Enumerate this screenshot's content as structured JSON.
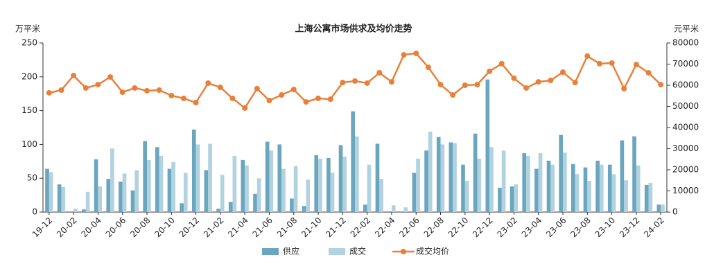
{
  "chart_data": {
    "type": "bar_line",
    "title": "上海公寓市场供求及均价走势",
    "ylabel": "万平米",
    "y2label": "元平米",
    "categories": [
      "19-12",
      null,
      "20-02",
      null,
      "20-04",
      null,
      "20-06",
      null,
      "20-08",
      null,
      "20-10",
      null,
      "20-12",
      null,
      "21-02",
      null,
      "21-04",
      null,
      "21-06",
      null,
      "21-08",
      null,
      "21-10",
      null,
      "21-12",
      null,
      "22-02",
      null,
      "22-04",
      null,
      "22-06",
      null,
      "22-08",
      null,
      "22-10",
      null,
      "22-12",
      null,
      "23-02",
      null,
      "23-04",
      null,
      "23-06",
      null,
      "23-08",
      null,
      "23-10",
      null,
      "23-12",
      null,
      "24-02"
    ],
    "series": [
      {
        "name": "供应",
        "color": "#6aa6be",
        "kind": "bar",
        "values": [
          64,
          41,
          0,
          4,
          78,
          49,
          45,
          32,
          105,
          96,
          64,
          13,
          122,
          62,
          5,
          15,
          77,
          27,
          104,
          100,
          20,
          9,
          84,
          80,
          99,
          149,
          11,
          101,
          0,
          0,
          58,
          91,
          111,
          103,
          70,
          116,
          196,
          36,
          38,
          87,
          64,
          76,
          114,
          71,
          66,
          76,
          70,
          106,
          112,
          40,
          11
        ]
      },
      {
        "name": "成交",
        "color": "#b1d2df",
        "kind": "bar",
        "values": [
          59,
          37,
          5,
          30,
          38,
          94,
          57,
          62,
          77,
          83,
          74,
          58,
          100,
          101,
          55,
          83,
          69,
          50,
          91,
          64,
          68,
          48,
          79,
          58,
          82,
          112,
          70,
          49,
          10,
          7,
          79,
          119,
          100,
          102,
          46,
          79,
          96,
          91,
          41,
          83,
          87,
          70,
          88,
          56,
          46,
          70,
          56,
          47,
          69,
          43,
          11
        ]
      },
      {
        "name": "成交均价",
        "color": "#e8803a",
        "kind": "line",
        "axis": "y2",
        "values": [
          56400,
          57700,
          64600,
          58700,
          60300,
          63900,
          56700,
          58700,
          57400,
          57700,
          55100,
          53800,
          51800,
          61000,
          59000,
          53800,
          49200,
          58400,
          52800,
          55400,
          58000,
          52100,
          53800,
          53400,
          61300,
          62000,
          61000,
          65900,
          61600,
          74400,
          75100,
          68500,
          60300,
          55400,
          60000,
          60300,
          66600,
          70200,
          63300,
          58700,
          61600,
          62300,
          66200,
          61300,
          73800,
          70200,
          70500,
          58400,
          69800,
          65900,
          60300
        ]
      }
    ],
    "ylim": [
      0,
      250
    ],
    "yticks": [
      0,
      50,
      100,
      150,
      200,
      250
    ],
    "y2lim": [
      0,
      80000
    ],
    "y2ticks": [
      0,
      10000,
      20000,
      30000,
      40000,
      50000,
      60000,
      70000,
      80000
    ],
    "grid": false,
    "legend": "bottom"
  }
}
